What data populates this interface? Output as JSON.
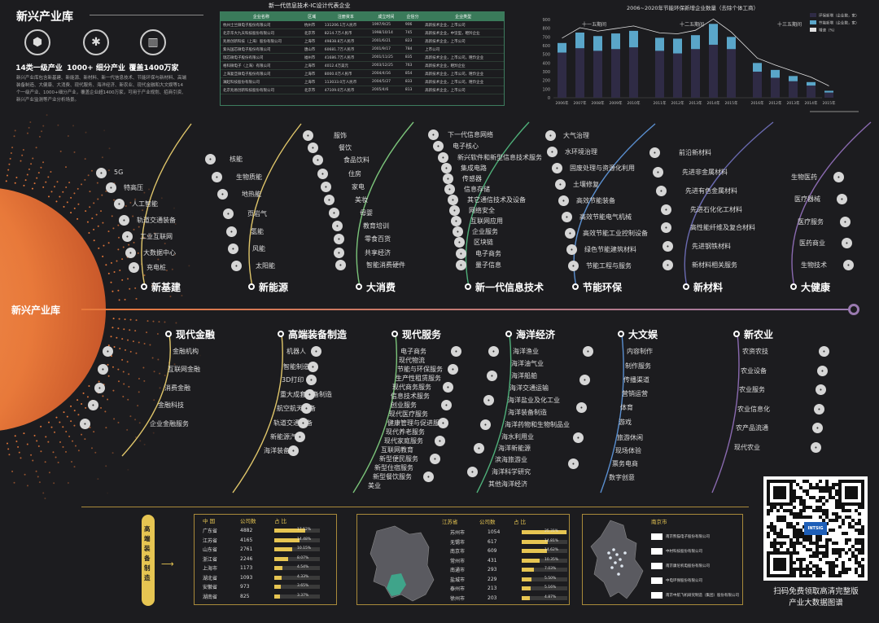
{
  "header": {
    "title": "新兴产业库",
    "stats": [
      {
        "icon": "cube-icon",
        "label": "14类一级产业"
      },
      {
        "icon": "network-icon",
        "label": "1000+ 细分产业"
      },
      {
        "icon": "building-icon",
        "label": "覆盖1400万家"
      }
    ],
    "intro": "新兴产业库包含新基建、新能源、新材料、新一代信息技术、节能环保与新材料、高端装备制造、大健康、大消费、现代服务、海洋经济、新农业、现代金融和大文娱等14个一级产业、1000+细分产业，覆盖企业超1400万家，可用于产业规划、招商引资、新兴产业监测等产业分析场景。"
  },
  "company_table": {
    "title": "新一代信息技术-IC设计代表企业",
    "columns": [
      "企业名称",
      "区域",
      "注册资本",
      "成立时间",
      "企信分",
      "企业类型"
    ],
    "rows": [
      [
        "杭州士兰微电子股份有限公司",
        "杭州市",
        "131206.1万人民币",
        "1997/9/25",
        "906",
        "高新技术企业，上市公司"
      ],
      [
        "北京华大九天科技股份有限公司",
        "北京市",
        "8214.7万人民币",
        "1998/10/14",
        "745",
        "高新技术企业，中坚型，瞪羚企业"
      ],
      [
        "兆易创新科技（上海）股份有限公司",
        "上海市",
        "49838.8万人民币",
        "2001/6/21",
        "823",
        "高新技术企业，上市公司"
      ],
      [
        "紫光国芯微电子股份有限公司",
        "唐山市",
        "60681.7万人民币",
        "2001/9/17",
        "784",
        "上市公司"
      ],
      [
        "瑞芯微电子股份有限公司",
        "福州市",
        "41686.7万人民币",
        "2001/11/25",
        "835",
        "高新技术企业，上市公司，瞪羚企业"
      ],
      [
        "格科微电子（上海）有限公司",
        "上海市",
        "4012.4万美元",
        "2003/12/25",
        "763",
        "高新技术企业，瞪羚企业"
      ],
      [
        "上海复旦微电子股份有限公司",
        "上海市",
        "8000.0万人民币",
        "2004/4/16",
        "854",
        "高新技术企业，上市公司，瞪羚企业"
      ],
      [
        "澜起科技股份有限公司",
        "上海市",
        "113033.0万人民币",
        "2004/5/27",
        "833",
        "高新技术企业，上市公司，瞪羚企业"
      ],
      [
        "北京兆易创新科技股份有限公司",
        "北京市",
        "47109.0万人民币",
        "2005/4/6",
        "813",
        "高新技术企业，上市公司"
      ]
    ]
  },
  "chart_data": {
    "type": "bar",
    "title": "2006~2020年节能环保新增企业数量（去除个体工商）",
    "legend": [
      "环保新增（企业数，家）",
      "节能新增（企业数，家）",
      "增速（%）"
    ],
    "periods": [
      "十一五期间",
      "十二五期间",
      "十三五期间"
    ],
    "categories": [
      "2006年",
      "2007年",
      "2008年",
      "2009年",
      "2010年",
      "2011年",
      "2012年",
      "2013年",
      "2014年",
      "2015年",
      "2016年",
      "2012年",
      "2013年",
      "2014年",
      "2015年"
    ],
    "y_ticks": [
      "900",
      "800",
      "700",
      "600",
      "500",
      "400",
      "300",
      "200",
      "100",
      "0"
    ],
    "ylim": [
      0,
      900
    ],
    "series": [
      {
        "name": "环保新增（企业数，家）",
        "values": [
          520,
          570,
          540,
          560,
          580,
          540,
          510,
          560,
          610,
          560,
          300,
          230,
          190,
          140,
          60
        ]
      },
      {
        "name": "节能新增（企业数，家）",
        "values": [
          110,
          180,
          170,
          180,
          190,
          150,
          170,
          160,
          240,
          140,
          100,
          90,
          60,
          40,
          20
        ]
      }
    ]
  },
  "center_label": "新兴产业库",
  "top_categories": [
    {
      "name": "新基建",
      "items": [
        "5G",
        "特高压",
        "人工智能",
        "轨道交通装备",
        "工业互联网",
        "大数据中心",
        "充电桩"
      ]
    },
    {
      "name": "新能源",
      "items": [
        "核能",
        "生物质能",
        "地热能",
        "页岩气",
        "氢能",
        "风能",
        "太阳能"
      ]
    },
    {
      "name": "大消费",
      "items": [
        "服饰",
        "餐饮",
        "食品饮料",
        "住房",
        "家电",
        "美妆",
        "母婴",
        "教育培训",
        "零食百货",
        "共享经济",
        "智能消费硬件"
      ]
    },
    {
      "name": "新一代信息技术",
      "items": [
        "下一代信息网络",
        "电子核心",
        "新兴软件和新型信息技术服务",
        "集成电路",
        "传感器",
        "信息存储",
        "其它通信技术及设备",
        "网络安全",
        "互联网应用",
        "企业服务",
        "区块链",
        "电子商务",
        "量子信息"
      ]
    },
    {
      "name": "节能环保",
      "items": [
        "大气治理",
        "水环境治理",
        "固废处理与资源化利用",
        "土壤修复",
        "高效节能装备",
        "高效节能电气机械",
        "高效节能工业控制设备",
        "绿色节能建筑材料",
        "节能工程与服务"
      ]
    },
    {
      "name": "新材料",
      "items": [
        "前沿新材料",
        "先进非金属材料",
        "先进有色金属材料",
        "先进石化化工材料",
        "高性能纤维及复合材料",
        "先进钢铁材料",
        "新材料相关服务"
      ]
    },
    {
      "name": "大健康",
      "items": [
        "生物医药",
        "医疗器械",
        "医疗服务",
        "医药商业",
        "生物技术"
      ]
    }
  ],
  "bottom_categories": [
    {
      "name": "现代金融",
      "items": [
        "金融机构",
        "互联网金融",
        "消费金融",
        "金融科技",
        "企业金融服务"
      ]
    },
    {
      "name": "高端装备制造",
      "items": [
        "机器人",
        "智能制造",
        "3D打印",
        "重大成套设备制造",
        "航空航天装备",
        "轨道交通装备",
        "新能源汽车",
        "海洋装备"
      ]
    },
    {
      "name": "现代服务",
      "items": [
        "电子商务",
        "现代物流",
        "节能与环保服务",
        "生产性租赁服务",
        "现代商务服务",
        "信息技术服务",
        "创业服务",
        "现代医疗服务",
        "健康管理与促进服务",
        "现代养老服务",
        "现代家庭服务",
        "互联网教育",
        "新型便民服务",
        "新型住宿服务",
        "新型餐饮服务",
        "美业"
      ]
    },
    {
      "name": "海洋经济",
      "items": [
        "海洋渔业",
        "海洋油气业",
        "海洋船舶",
        "海洋交通运输",
        "海洋盐业及化工业",
        "海洋装备制造",
        "海洋药物和生物制品业",
        "海水利用业",
        "海洋新能源",
        "滨海旅游业",
        "海洋科学研究",
        "其他海洋经济"
      ]
    },
    {
      "name": "大文娱",
      "items": [
        "内容制作",
        "制作服务",
        "传播渠道",
        "营销运营",
        "体育",
        "游戏",
        "旅游休闲",
        "现场体验",
        "票务电商",
        "数字创意"
      ]
    },
    {
      "name": "新农业",
      "items": [
        "农资农技",
        "农业设备",
        "农业服务",
        "农业信息化",
        "农产品流通",
        "现代农业"
      ]
    }
  ],
  "bottom_panel": {
    "side_label": "高端装备制造",
    "province_table": {
      "columns": [
        "中 国",
        "公司数",
        "占 比"
      ],
      "rows": [
        [
          "广东省",
          "4882",
          "17.52%",
          0.1752
        ],
        [
          "江苏省",
          "4165",
          "14.48%",
          0.1448
        ],
        [
          "山东省",
          "2761",
          "10.15%",
          0.1015
        ],
        [
          "浙江省",
          "2246",
          "8.07%",
          0.0807
        ],
        [
          "上海市",
          "1173",
          "4.54%",
          0.0454
        ],
        [
          "湖北省",
          "1093",
          "4.33%",
          0.0433
        ],
        [
          "安徽省",
          "973",
          "3.65%",
          0.0365
        ],
        [
          "湖南省",
          "825",
          "3.37%",
          0.0337
        ]
      ]
    },
    "city_table": {
      "columns": [
        "江苏省",
        "公司数",
        "占 比"
      ],
      "rows": [
        [
          "苏州市",
          "1054",
          "25.31%",
          0.2531
        ],
        [
          "无锡市",
          "617",
          "14.81%",
          0.1481
        ],
        [
          "南京市",
          "609",
          "14.62%",
          0.1462
        ],
        [
          "常州市",
          "431",
          "10.35%",
          0.1035
        ],
        [
          "南通市",
          "293",
          "7.03%",
          0.0703
        ],
        [
          "盐城市",
          "229",
          "5.50%",
          0.055
        ],
        [
          "泰州市",
          "213",
          "5.16%",
          0.0516
        ],
        [
          "徐州市",
          "203",
          "4.87%",
          0.0487
        ]
      ]
    },
    "nanjing": {
      "title": "南京市",
      "companies": [
        "南京熊猫电子股份有限公司",
        "中材科技股份有限公司",
        "南京康尼机电股份有限公司",
        "中电环保股份有限公司",
        "南京中航飞机研究制造（集团）股份有限公司"
      ]
    }
  },
  "qr": {
    "badge": "INTSIG",
    "caption_line1": "扫码免费领取高清完整版",
    "caption_line2": "产业大数据图谱"
  },
  "colors": {
    "accent": "#e8793a",
    "gold": "#e6c552",
    "green": "#3a7a5a",
    "purple": "#6e5a8a"
  }
}
